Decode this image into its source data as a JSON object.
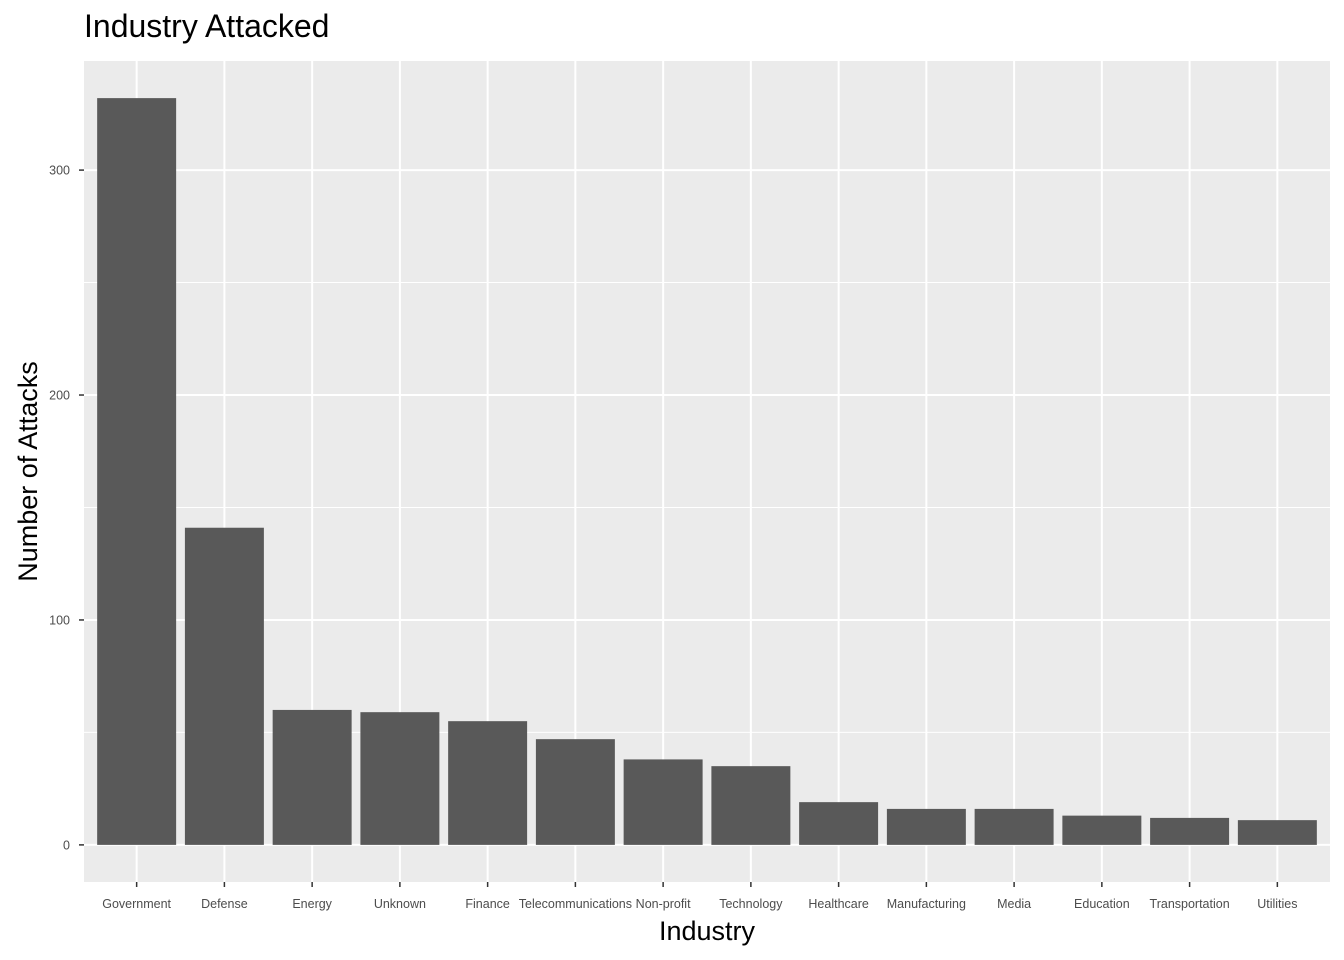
{
  "chart_data": {
    "type": "bar",
    "title": "Industry Attacked",
    "xlabel": "Industry",
    "ylabel": "Number of Attacks",
    "categories": [
      "Government",
      "Defense",
      "Energy",
      "Unknown",
      "Finance",
      "Telecommunications",
      "Non-profit",
      "Technology",
      "Healthcare",
      "Manufacturing",
      "Media",
      "Education",
      "Transportation",
      "Utilities"
    ],
    "values": [
      332,
      141,
      60,
      59,
      55,
      47,
      38,
      35,
      19,
      16,
      16,
      13,
      12,
      11
    ],
    "yticks": [
      0,
      100,
      200,
      300
    ],
    "ylim": [
      -16.5,
      348.5
    ],
    "grid": true,
    "colors": {
      "bar": "#595959",
      "panel": "#ebebeb",
      "grid": "#ffffff"
    }
  }
}
